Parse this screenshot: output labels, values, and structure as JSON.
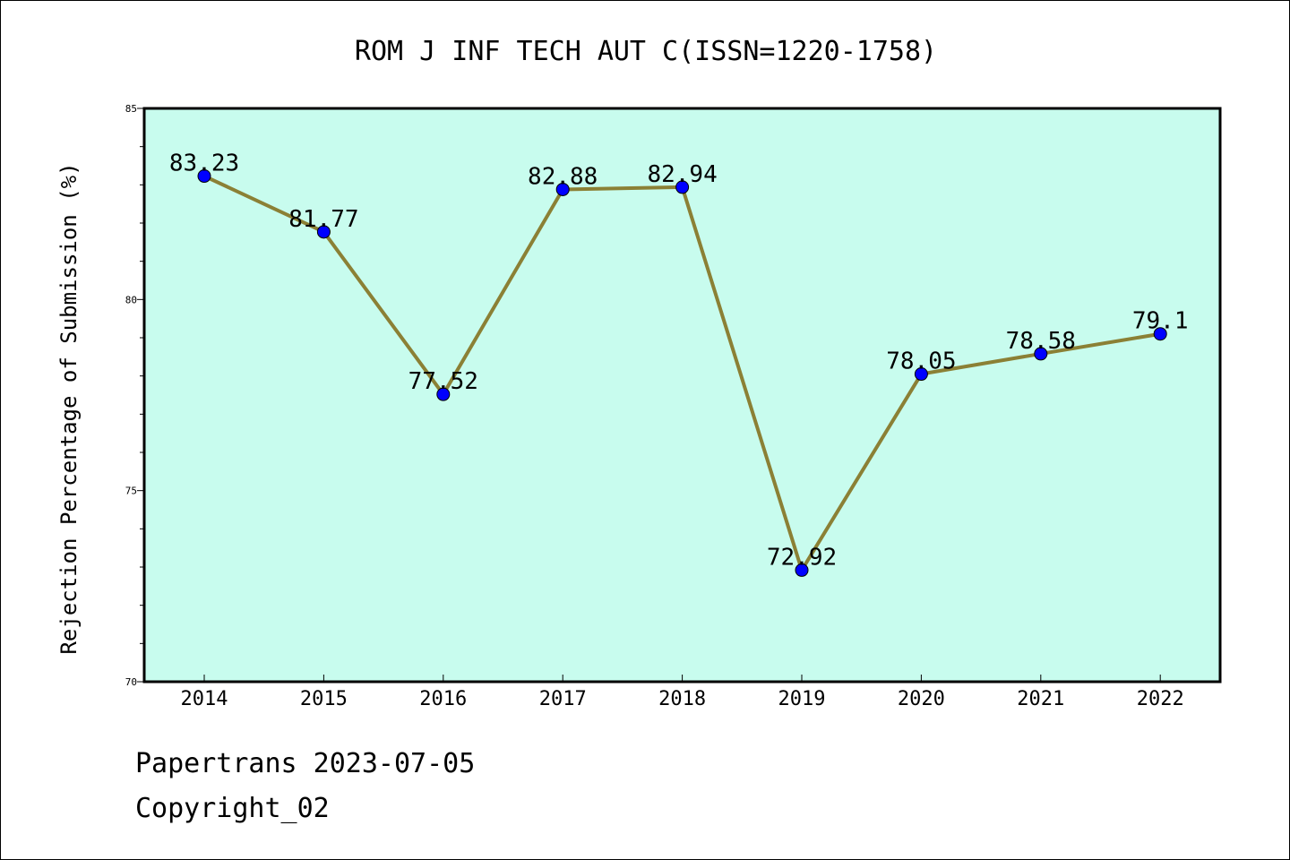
{
  "chart_data": {
    "type": "line",
    "title": "ROM J INF TECH AUT C(ISSN=1220-1758)",
    "xlabel": "",
    "ylabel": "Rejection Percentage of Submission (%)",
    "categories": [
      "2014",
      "2015",
      "2016",
      "2017",
      "2018",
      "2019",
      "2020",
      "2021",
      "2022"
    ],
    "values": [
      83.23,
      81.77,
      77.52,
      82.88,
      82.94,
      72.92,
      78.05,
      78.58,
      79.1
    ],
    "data_labels": [
      "83.23",
      "81.77",
      "77.52",
      "82.88",
      "82.94",
      "72.92",
      "78.05",
      "78.58",
      "79.1"
    ],
    "ylim": [
      70,
      85
    ],
    "yticks": [
      70,
      75,
      80,
      85
    ],
    "grid": false,
    "colors": {
      "plot_background": "#c8fcee",
      "line": "#8b8035",
      "marker": "#0000ff"
    }
  },
  "footer": {
    "line1": "Papertrans 2023-07-05",
    "line2": "Copyright_02"
  }
}
